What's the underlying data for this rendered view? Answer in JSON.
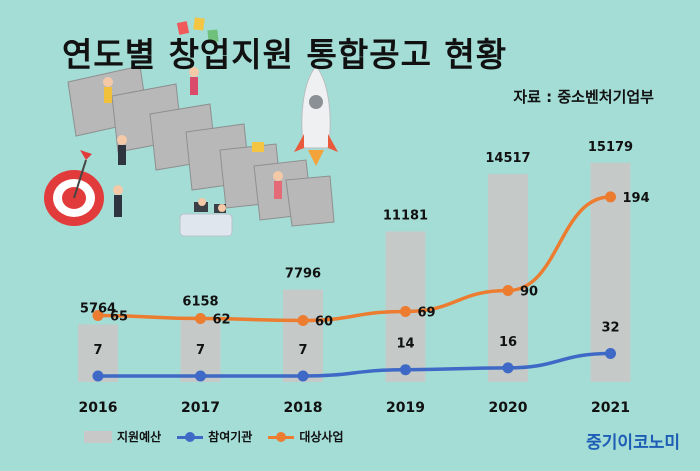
{
  "title": "연도별 창업지원 통합공고 현황",
  "source": "자료 : 중소벤처기업부",
  "brand": "중기이코노미",
  "colors": {
    "background": "#a3ddd6",
    "bar": "#c8c8c8",
    "line_orgs": "#3e69c6",
    "line_projects": "#ec7c30"
  },
  "legend": {
    "budget": "지원예산",
    "orgs": "참여기관",
    "projects": "대상사업"
  },
  "chart_data": {
    "type": "bar",
    "categories": [
      "2016",
      "2017",
      "2018",
      "2019",
      "2020",
      "2021"
    ],
    "series": [
      {
        "name": "지원예산",
        "type": "bar",
        "values": [
          5764,
          6158,
          7796,
          11181,
          14517,
          15179
        ]
      },
      {
        "name": "참여기관",
        "type": "line",
        "values": [
          7,
          7,
          7,
          14,
          16,
          32
        ]
      },
      {
        "name": "대상사업",
        "type": "line",
        "values": [
          65,
          62,
          60,
          69,
          90,
          194
        ]
      }
    ]
  }
}
